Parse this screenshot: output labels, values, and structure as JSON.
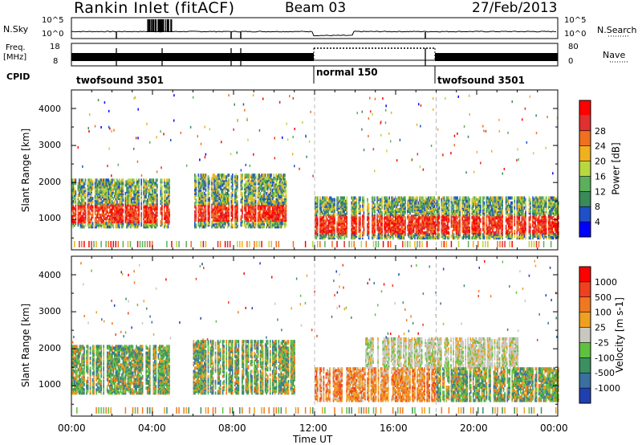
{
  "header": {
    "station": "Rankin Inlet (fitACF)",
    "beam": "Beam 03",
    "date": "27/Feb/2013"
  },
  "strip": {
    "nsky_label": "N.Sky",
    "nsearch_label": "N.Search",
    "freq_label_1": "Freq.",
    "freq_label_2": "[MHz]",
    "nave_label": "Nave",
    "cpid_label": "CPID",
    "noise_ticks": [
      "10^5",
      "10^0"
    ],
    "freq_ticks": [
      "18",
      "8"
    ],
    "nave_ticks": [
      "80",
      "0"
    ],
    "cpid_segments": [
      {
        "label": "twofsound 3501",
        "start_hour": 0,
        "end_hour": 12
      },
      {
        "label": "normal 150",
        "start_hour": 12,
        "end_hour": 18
      },
      {
        "label": "twofsound 3501",
        "start_hour": 18,
        "end_hour": 24
      }
    ]
  },
  "axes": {
    "x_ticks": [
      "00:00",
      "04:00",
      "08:00",
      "12:00",
      "16:00",
      "20:00",
      "00:00"
    ],
    "xlabel": "Time UT",
    "ylabel": "Slant Range [km]",
    "y_ticks": [
      "1000",
      "2000",
      "3000",
      "4000"
    ]
  },
  "colorbars": {
    "power": {
      "label": "Power [dB]",
      "ticks": [
        "4",
        "8",
        "12",
        "16",
        "20",
        "24",
        "28"
      ],
      "colors": [
        "#0000ff",
        "#2050c8",
        "#3a8a5a",
        "#5bb05b",
        "#b8d840",
        "#f0b020",
        "#f07020",
        "#e03030",
        "#ff0000"
      ]
    },
    "velocity": {
      "label": "Velocity [m s-1]",
      "ticks": [
        "1000",
        "500",
        "100",
        "25",
        "-25",
        "-100",
        "-500",
        "-1000"
      ],
      "colors": [
        "#2040b0",
        "#3a70a0",
        "#3a9060",
        "#60c040",
        "#c8c8c0",
        "#f0a020",
        "#f07820",
        "#f04020",
        "#ff0000"
      ]
    }
  },
  "chart_data": {
    "type": "heatmap",
    "x_range_hours": [
      0,
      24
    ],
    "y_range_km": [
      180,
      4500
    ],
    "power_bands": [
      {
        "t0": 0.0,
        "t1": 4.8,
        "r0": 800,
        "r1": 2100,
        "core_r0": 900,
        "core_r1": 1400
      },
      {
        "t0": 6.0,
        "t1": 10.6,
        "r0": 800,
        "r1": 2200,
        "core_r0": 950,
        "core_r1": 1400
      },
      {
        "t0": 12.0,
        "t1": 24.0,
        "r0": 500,
        "r1": 1600,
        "core_r0": 600,
        "core_r1": 1100
      }
    ],
    "velocity_bands": [
      {
        "t0": 0.0,
        "t1": 4.8,
        "r0": 800,
        "r1": 2100,
        "kind": "mixed-green"
      },
      {
        "t0": 6.0,
        "t1": 11.0,
        "r0": 800,
        "r1": 2200,
        "kind": "mixed-green"
      },
      {
        "t0": 12.0,
        "t1": 18.0,
        "r0": 600,
        "r1": 1500,
        "kind": "orange"
      },
      {
        "t0": 14.5,
        "t1": 22.0,
        "r0": 1500,
        "r1": 2300,
        "kind": "grey"
      },
      {
        "t0": 18.0,
        "t1": 24.0,
        "r0": 600,
        "r1": 1500,
        "kind": "green-orange"
      }
    ]
  }
}
